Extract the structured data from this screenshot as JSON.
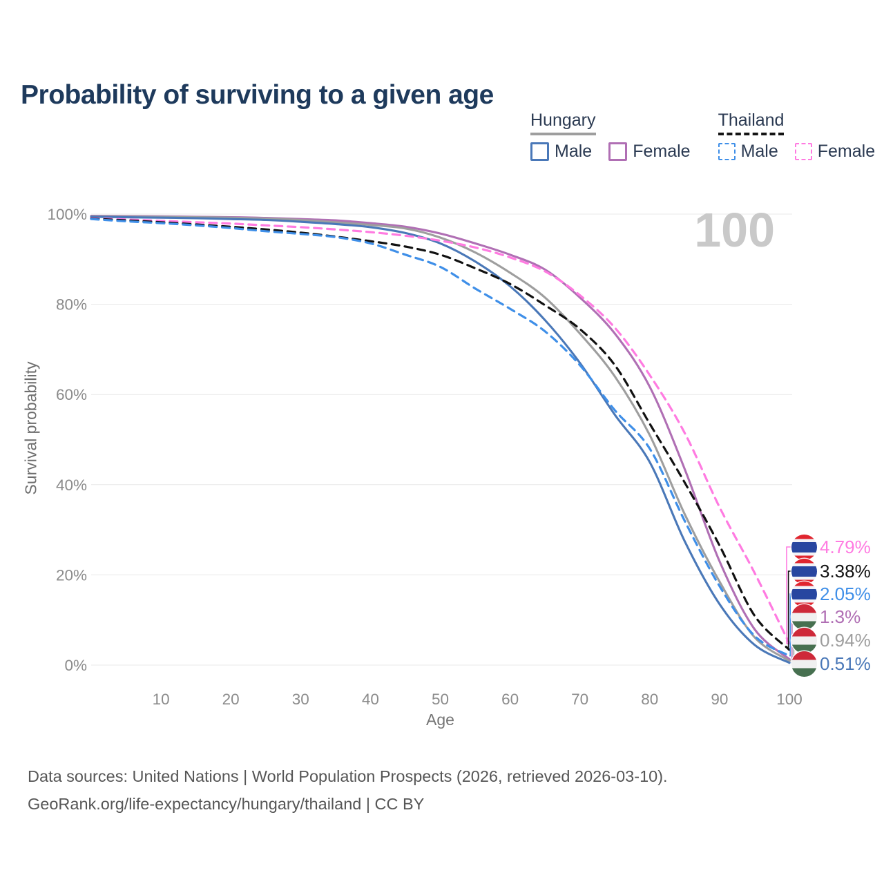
{
  "title": "Probability of surviving to a given age",
  "watermark": "100",
  "legend": {
    "hungary": {
      "label": "Hungary",
      "male": "Male",
      "female": "Female"
    },
    "thailand": {
      "label": "Thailand",
      "male": "Male",
      "female": "Female"
    }
  },
  "axes": {
    "x_label": "Age",
    "y_label": "Survival probability",
    "x_ticks": [
      10,
      20,
      30,
      40,
      50,
      60,
      70,
      80,
      90,
      100
    ],
    "y_ticks": [
      {
        "value": 0,
        "label": "0%"
      },
      {
        "value": 20,
        "label": "20%"
      },
      {
        "value": 40,
        "label": "40%"
      },
      {
        "value": 60,
        "label": "60%"
      },
      {
        "value": 80,
        "label": "80%"
      },
      {
        "value": 100,
        "label": "100%"
      }
    ]
  },
  "colors": {
    "grid": "#e9e9e9",
    "tick_text": "#8b8b8b",
    "axis_label_text": "#757575",
    "title_text": "#1e3a5c",
    "legend_text": "#2b3a52",
    "footer_text": "#565656",
    "watermark_text": "#c9c9c9"
  },
  "end_labels": [
    {
      "series": "thailand-female",
      "value": "4.79%",
      "color": "#ff7be1",
      "flag": "thailand"
    },
    {
      "series": "thailand-average",
      "value": "3.38%",
      "color": "#111111",
      "flag": "thailand"
    },
    {
      "series": "thailand-male",
      "value": "2.05%",
      "color": "#3f8fe8",
      "flag": "thailand"
    },
    {
      "series": "hungary-female",
      "value": "1.3%",
      "color": "#b06fb4",
      "flag": "hungary"
    },
    {
      "series": "hungary-average",
      "value": "0.94%",
      "color": "#9e9e9e",
      "flag": "hungary"
    },
    {
      "series": "hungary-male",
      "value": "0.51%",
      "color": "#4a78b8",
      "flag": "hungary"
    }
  ],
  "footer": {
    "line1": "Data sources: United Nations | World Population Prospects (2026, retrieved 2026-03-10).",
    "line2": "GeoRank.org/life-expectancy/hungary/thailand | CC BY"
  },
  "chart_data": {
    "type": "line",
    "title": "Probability of surviving to a given age",
    "xlabel": "Age",
    "ylabel": "Survival probability",
    "xlim": [
      0,
      100
    ],
    "ylim": [
      0,
      100
    ],
    "grid": "horizontal",
    "x": [
      0,
      5,
      10,
      15,
      20,
      25,
      30,
      35,
      40,
      45,
      50,
      55,
      60,
      65,
      70,
      75,
      80,
      85,
      90,
      95,
      100
    ],
    "series": [
      {
        "id": "hungary-female",
        "name": "Hungary Female",
        "color": "#b06fb4",
        "dash": "solid",
        "values": [
          99.6,
          99.55,
          99.5,
          99.4,
          99.3,
          99.15,
          98.9,
          98.6,
          98.0,
          97.2,
          95.7,
          93.5,
          91.0,
          87.7,
          81.5,
          73.5,
          61.7,
          43.5,
          23.0,
          8.0,
          1.3
        ]
      },
      {
        "id": "hungary-average",
        "name": "Hungary",
        "color": "#9e9e9e",
        "dash": "solid",
        "values": [
          99.5,
          99.45,
          99.4,
          99.3,
          99.2,
          99.0,
          98.7,
          98.2,
          97.6,
          96.8,
          94.8,
          91.5,
          87.0,
          81.5,
          73.5,
          64.0,
          51.0,
          33.5,
          18.5,
          6.2,
          0.94
        ]
      },
      {
        "id": "hungary-male",
        "name": "Hungary Male",
        "color": "#4a78b8",
        "dash": "solid",
        "values": [
          99.4,
          99.3,
          99.2,
          99.1,
          98.9,
          98.7,
          98.3,
          97.8,
          97.1,
          95.8,
          93.5,
          89.5,
          84.0,
          76.5,
          67.0,
          55.5,
          45.0,
          27.5,
          13.5,
          4.5,
          0.51
        ]
      },
      {
        "id": "thailand-female",
        "name": "Thailand Female",
        "color": "#ff7be1",
        "dash": "dashed",
        "values": [
          99.1,
          98.8,
          98.5,
          98.2,
          97.9,
          97.5,
          97.1,
          96.6,
          96.0,
          95.2,
          94.1,
          92.6,
          90.4,
          87.3,
          82.0,
          74.8,
          64.3,
          51.5,
          35.0,
          20.5,
          4.79
        ]
      },
      {
        "id": "thailand-average",
        "name": "Thailand",
        "color": "#111111",
        "dash": "dashed",
        "values": [
          99.0,
          98.6,
          98.2,
          97.7,
          97.2,
          96.6,
          95.9,
          95.0,
          94.0,
          92.8,
          91.0,
          88.0,
          84.5,
          79.8,
          74.5,
          66.5,
          53.5,
          40.5,
          26.5,
          11.0,
          3.38
        ]
      },
      {
        "id": "thailand-male",
        "name": "Thailand Male",
        "color": "#3f8fe8",
        "dash": "dashed",
        "values": [
          98.9,
          98.4,
          98.0,
          97.5,
          96.9,
          96.2,
          95.6,
          94.9,
          93.5,
          91.0,
          88.3,
          83.5,
          79.0,
          74.0,
          66.5,
          56.5,
          48.0,
          32.0,
          17.5,
          6.5,
          2.05
        ]
      }
    ]
  }
}
